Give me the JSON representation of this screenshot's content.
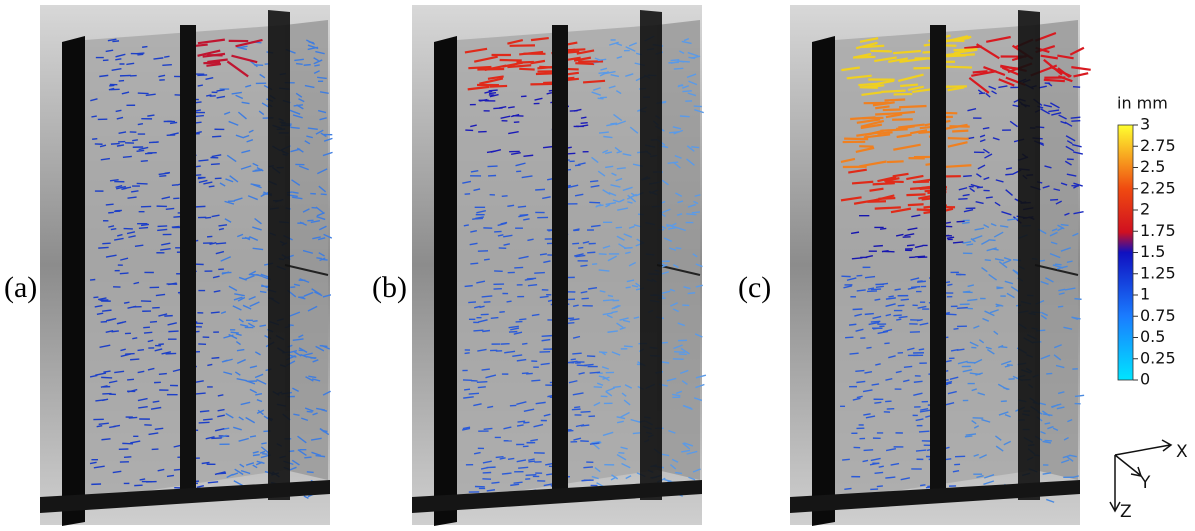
{
  "panels": [
    {
      "label": "(a)"
    },
    {
      "label": "(b)"
    },
    {
      "label": "(c)"
    }
  ],
  "colorbar": {
    "title": "in mm",
    "ticks": [
      0,
      0.25,
      0.5,
      0.75,
      1,
      1.25,
      1.5,
      1.75,
      2,
      2.25,
      2.5,
      2.75,
      3
    ]
  },
  "axes": {
    "x": "X",
    "y": "Y",
    "z": "Z"
  }
}
